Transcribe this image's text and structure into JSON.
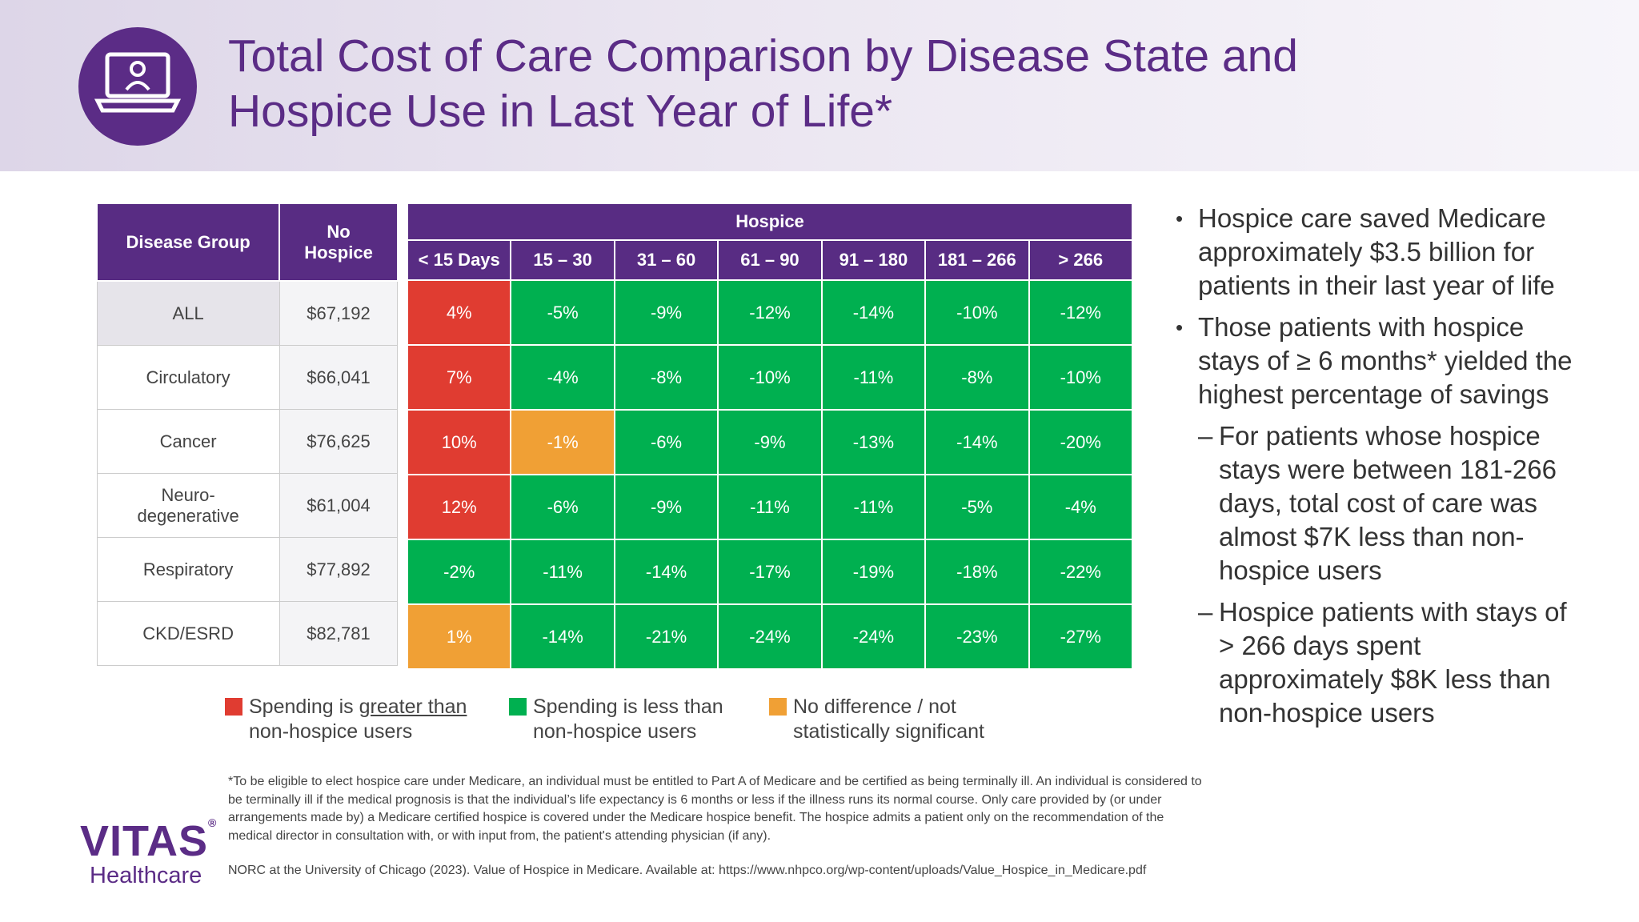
{
  "header": {
    "title_lines": [
      "Total Cost of Care Comparison by Disease State and",
      "Hospice Use in Last Year of Life*"
    ]
  },
  "table": {
    "left_headers": [
      "Disease Group",
      "No Hospice"
    ],
    "group_header": "Hospice",
    "hospice_headers": [
      "< 15 Days",
      "15 – 30",
      "31 – 60",
      "61 – 90",
      "91 – 180",
      "181 – 266",
      "> 266"
    ],
    "rows": [
      [
        "ALL",
        "$67,192",
        "4%",
        "-5%",
        "-9%",
        "-12%",
        "-14%",
        "-10%",
        "-12%"
      ],
      [
        "Circulatory",
        "$66,041",
        "7%",
        "-4%",
        "-8%",
        "-10%",
        "-11%",
        "-8%",
        "-10%"
      ],
      [
        "Cancer",
        "$76,625",
        "10%",
        "-1%",
        "-6%",
        "-9%",
        "-13%",
        "-14%",
        "-20%"
      ],
      [
        "Neuro-degenerative",
        "$61,004",
        "12%",
        "-6%",
        "-9%",
        "-11%",
        "-11%",
        "-5%",
        "-4%"
      ],
      [
        "Respiratory",
        "$77,892",
        "-2%",
        "-11%",
        "-14%",
        "-17%",
        "-19%",
        "-18%",
        "-22%"
      ],
      [
        "CKD/ESRD",
        "$82,781",
        "1%",
        "-14%",
        "-21%",
        "-24%",
        "-24%",
        "-23%",
        "-27%"
      ]
    ],
    "cell_colors": [
      [
        "#e03c31",
        "#00b050",
        "#00b050",
        "#00b050",
        "#00b050",
        "#00b050",
        "#00b050"
      ],
      [
        "#e03c31",
        "#00b050",
        "#00b050",
        "#00b050",
        "#00b050",
        "#00b050",
        "#00b050"
      ],
      [
        "#e03c31",
        "#f0a035",
        "#00b050",
        "#00b050",
        "#00b050",
        "#00b050",
        "#00b050"
      ],
      [
        "#e03c31",
        "#00b050",
        "#00b050",
        "#00b050",
        "#00b050",
        "#00b050",
        "#00b050"
      ],
      [
        "#00b050",
        "#00b050",
        "#00b050",
        "#00b050",
        "#00b050",
        "#00b050",
        "#00b050"
      ],
      [
        "#f0a035",
        "#00b050",
        "#00b050",
        "#00b050",
        "#00b050",
        "#00b050",
        "#00b050"
      ]
    ]
  },
  "legend": [
    {
      "color": "#e03c31",
      "parts": [
        "Spending is ",
        "greater than",
        " non-hospice users"
      ]
    },
    {
      "color": "#00b050",
      "parts": [
        "Spending is less than non-hospice users"
      ]
    },
    {
      "color": "#f0a035",
      "parts": [
        "No difference / not statistically significant"
      ]
    }
  ],
  "bullets": [
    {
      "level": 0,
      "text": "Hospice care saved Medicare approximately $3.5 billion for patients in their last year of life"
    },
    {
      "level": 0,
      "text": "Those patients with hospice stays of ≥ 6 months* yielded the highest percentage of savings"
    },
    {
      "level": 1,
      "text": "For patients whose hospice stays were between 181-266 days, total cost of care was almost $7K less than non-hospice users"
    },
    {
      "level": 1,
      "text": "Hospice patients with stays of > 266 days spent approximately $8K less than non-hospice users"
    }
  ],
  "footnote": "*To be eligible to elect hospice care under Medicare, an individual must be entitled to Part A of Medicare and be certified as being terminally ill. An individual is considered to be terminally ill if the medical prognosis is that the individual’s life expectancy is 6 months or less if the illness runs its normal course. Only care provided by (or under arrangements made by) a Medicare certified hospice is covered under the Medicare hospice benefit. The hospice admits a patient only on the recommendation of the medical director in consultation with, or with input from, the patient's attending physician (if any).",
  "source": "NORC at the University of Chicago (2023). Value of Hospice in Medicare. Available at: https://www.nhpco.org/wp-content/uploads/Value_Hospice_in_Medicare.pdf",
  "logo": {
    "name": "VITAS",
    "mark": "®",
    "sub": "Healthcare"
  }
}
